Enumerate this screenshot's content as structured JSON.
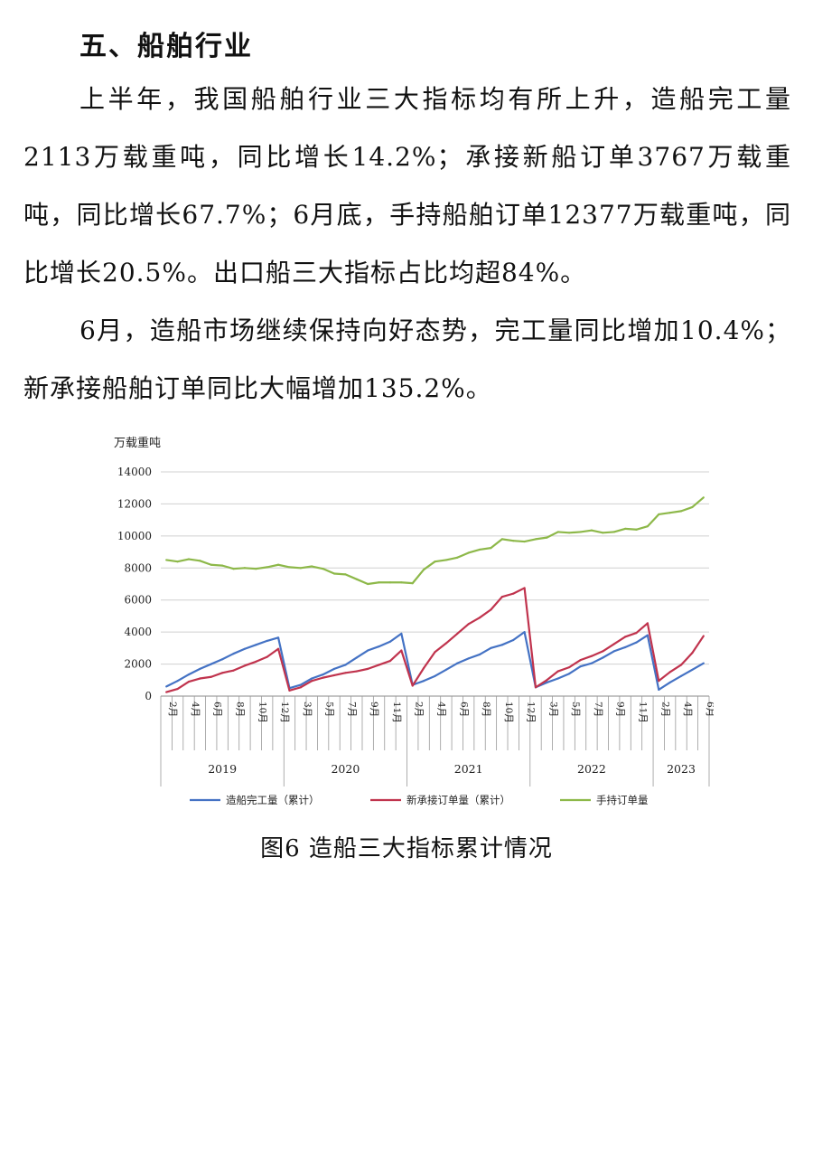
{
  "section5": {
    "heading": "五、船舶行业",
    "p1": "上半年，我国船舶行业三大指标均有所上升，造船完工量2113万载重吨，同比增长14.2%；承接新船订单3767万载重吨，同比增长67.7%；6月底，手持船舶订单12377万载重吨，同比增长20.5%。出口船三大指标占比均超84%。",
    "p2": "6月，造船市场继续保持向好态势，完工量同比增加10.4%；新承接船舶订单同比大幅增加135.2%。"
  },
  "figure": {
    "caption": "图6 造船三大指标累计情况"
  },
  "chart_data": {
    "type": "line",
    "ylabel": "万载重吨",
    "ylim": [
      0,
      14000
    ],
    "yticks": [
      0,
      2000,
      4000,
      6000,
      8000,
      10000,
      12000,
      14000
    ],
    "grid": true,
    "legend_position": "bottom",
    "categories": [
      "2月",
      "3月",
      "4月",
      "5月",
      "6月",
      "7月",
      "8月",
      "9月",
      "10月",
      "11月",
      "12月",
      "2月",
      "3月",
      "4月",
      "5月",
      "6月",
      "7月",
      "8月",
      "9月",
      "10月",
      "11月",
      "12月",
      "2月",
      "3月",
      "4月",
      "5月",
      "6月",
      "7月",
      "8月",
      "9月",
      "10月",
      "11月",
      "12月",
      "2月",
      "3月",
      "4月",
      "5月",
      "6月",
      "7月",
      "8月",
      "9月",
      "10月",
      "11月",
      "12月",
      "2月",
      "3月",
      "4月",
      "5月",
      "6月"
    ],
    "years": [
      {
        "label": "2019",
        "count": 11
      },
      {
        "label": "2020",
        "count": 11
      },
      {
        "label": "2021",
        "count": 11
      },
      {
        "label": "2022",
        "count": 11
      },
      {
        "label": "2023",
        "count": 5
      }
    ],
    "series": [
      {
        "name": "造船完工量（累计）",
        "color": "#4472C4",
        "values": [
          600,
          950,
          1350,
          1700,
          2000,
          2300,
          2650,
          2950,
          3200,
          3450,
          3650,
          500,
          700,
          1100,
          1350,
          1700,
          1950,
          2400,
          2850,
          3100,
          3400,
          3900,
          700,
          950,
          1250,
          1650,
          2050,
          2350,
          2600,
          3000,
          3200,
          3500,
          4000,
          550,
          850,
          1100,
          1400,
          1850,
          2050,
          2400,
          2800,
          3050,
          3350,
          3800,
          400,
          850,
          1250,
          1650,
          2050
        ]
      },
      {
        "name": "新承接订单量（累计）",
        "color": "#C0334D",
        "values": [
          250,
          450,
          900,
          1100,
          1200,
          1450,
          1600,
          1900,
          2150,
          2450,
          2950,
          350,
          550,
          950,
          1150,
          1300,
          1450,
          1550,
          1700,
          1950,
          2200,
          2850,
          650,
          1750,
          2750,
          3300,
          3900,
          4500,
          4900,
          5400,
          6200,
          6400,
          6750,
          550,
          1000,
          1550,
          1800,
          2250,
          2500,
          2800,
          3250,
          3700,
          3950,
          4550,
          950,
          1500,
          1950,
          2700,
          3750
        ]
      },
      {
        "name": "手持订单量",
        "color": "#8DB849",
        "values": [
          8500,
          8400,
          8550,
          8450,
          8200,
          8150,
          7950,
          8000,
          7950,
          8050,
          8200,
          8050,
          8000,
          8100,
          7950,
          7650,
          7600,
          7300,
          7000,
          7100,
          7100,
          7100,
          7050,
          7900,
          8400,
          8500,
          8650,
          8950,
          9150,
          9250,
          9800,
          9700,
          9650,
          9800,
          9900,
          10250,
          10200,
          10250,
          10350,
          10200,
          10250,
          10450,
          10400,
          10600,
          11350,
          11450,
          11550,
          11800,
          12400
        ]
      }
    ]
  }
}
